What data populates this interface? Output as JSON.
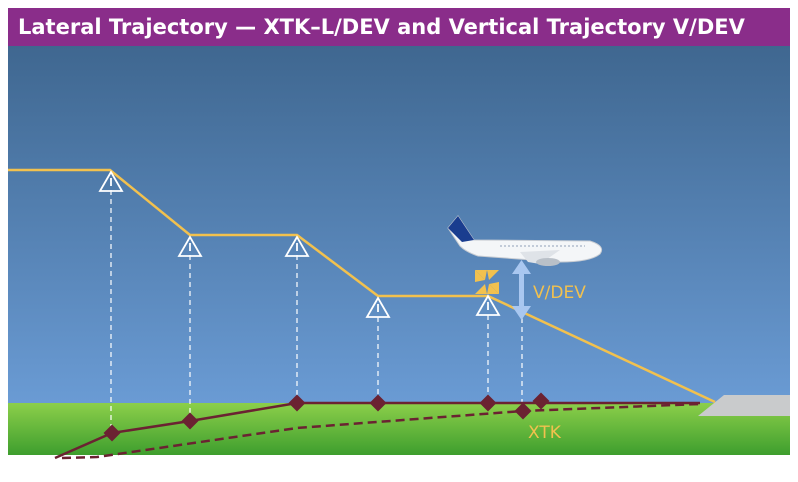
{
  "header": {
    "title": "Lateral Trajectory — XTK–L/DEV and Vertical Trajectory V/DEV"
  },
  "labels": {
    "vdev": "V/DEV",
    "xtk": "XTK"
  }
}
